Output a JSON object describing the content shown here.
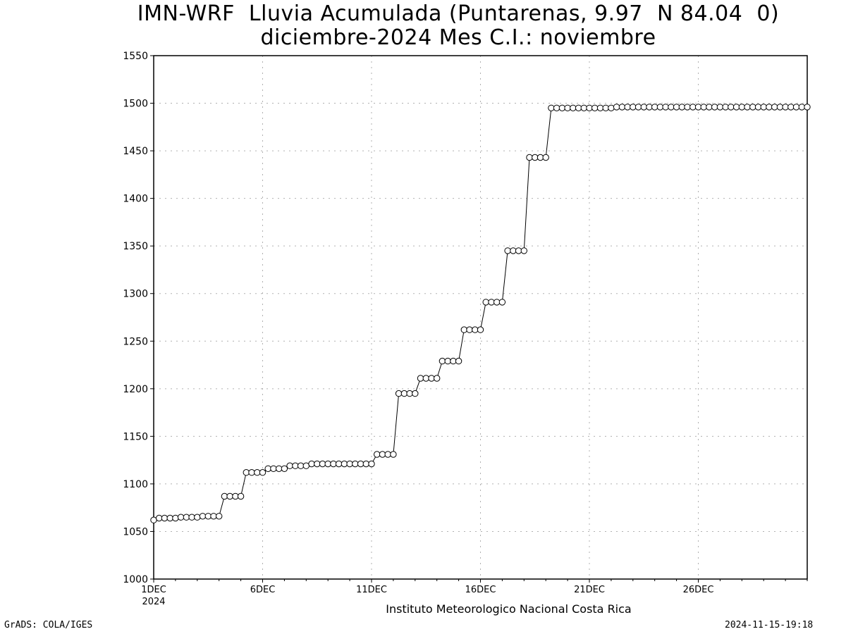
{
  "chart_data": {
    "type": "line",
    "title": "IMN-WRF  Lluvia Acumulada (Puntarenas, 9.97  N 84.04  0)",
    "subtitle": "diciembre-2024 Mes C.I.: noviembre",
    "xlabel": "Instituto Meteorologico Nacional Costa Rica",
    "ylabel": "",
    "ylim": [
      1000,
      1550
    ],
    "yticks": [
      "1000",
      "1050",
      "1100",
      "1150",
      "1200",
      "1250",
      "1300",
      "1350",
      "1400",
      "1450",
      "1500",
      "1550"
    ],
    "xlim": [
      1,
      31
    ],
    "xticks": [
      {
        "day": 1,
        "label": "1DEC",
        "sublabel": "2024"
      },
      {
        "day": 6,
        "label": "6DEC",
        "sublabel": ""
      },
      {
        "day": 11,
        "label": "11DEC",
        "sublabel": ""
      },
      {
        "day": 16,
        "label": "16DEC",
        "sublabel": ""
      },
      {
        "day": 21,
        "label": "21DEC",
        "sublabel": ""
      },
      {
        "day": 26,
        "label": "26DEC",
        "sublabel": ""
      }
    ],
    "grid": true,
    "marker": "open-circle",
    "step_days": 0.25,
    "x_start_day": 1,
    "values": [
      1062,
      1064,
      1064,
      1064,
      1064,
      1065,
      1065,
      1065,
      1065,
      1066,
      1066,
      1066,
      1066,
      1087,
      1087,
      1087,
      1087,
      1112,
      1112,
      1112,
      1112,
      1116,
      1116,
      1116,
      1116,
      1119,
      1119,
      1119,
      1119,
      1121,
      1121,
      1121,
      1121,
      1121,
      1121,
      1121,
      1121,
      1121,
      1121,
      1121,
      1121,
      1131,
      1131,
      1131,
      1131,
      1195,
      1195,
      1195,
      1195,
      1211,
      1211,
      1211,
      1211,
      1229,
      1229,
      1229,
      1229,
      1262,
      1262,
      1262,
      1262,
      1291,
      1291,
      1291,
      1291,
      1345,
      1345,
      1345,
      1345,
      1443,
      1443,
      1443,
      1443,
      1495,
      1495,
      1495,
      1495,
      1495,
      1495,
      1495,
      1495,
      1495,
      1495,
      1495,
      1495,
      1496,
      1496,
      1496,
      1496,
      1496,
      1496,
      1496,
      1496,
      1496,
      1496,
      1496,
      1496,
      1496,
      1496,
      1496,
      1496,
      1496,
      1496,
      1496,
      1496,
      1496,
      1496,
      1496,
      1496,
      1496,
      1496,
      1496,
      1496,
      1496,
      1496,
      1496,
      1496,
      1496,
      1496,
      1496,
      1496
    ]
  },
  "footer": {
    "left": "GrADS: COLA/IGES",
    "right": "2024-11-15-19:18"
  }
}
